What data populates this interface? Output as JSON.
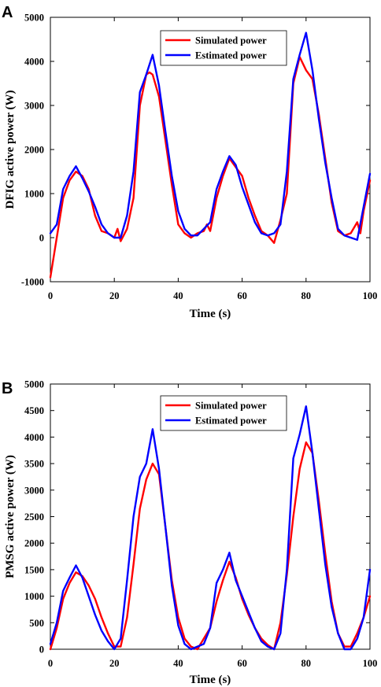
{
  "colors": {
    "simulated": "#ff0000",
    "estimated": "#0000ff"
  },
  "chart_data": [
    {
      "panel_label": "A",
      "type": "line",
      "title": "",
      "xlabel": "Time (s)",
      "ylabel": "DFIG active power (W)",
      "xlim": [
        0,
        100
      ],
      "ylim": [
        -1000,
        5000
      ],
      "xticks": [
        0,
        20,
        40,
        60,
        80,
        100
      ],
      "yticks": [
        -1000,
        0,
        1000,
        2000,
        3000,
        4000,
        5000
      ],
      "xtick_labels": [
        "0",
        "20",
        "40",
        "60",
        "80",
        "100"
      ],
      "ytick_labels": [
        "-1000",
        "0",
        "1000",
        "2000",
        "3000",
        "4000",
        "5000"
      ],
      "grid": false,
      "legend_position": "top-right",
      "series": [
        {
          "name": "Simulated power",
          "color": "#ff0000",
          "points": [
            [
              0,
              -900
            ],
            [
              2,
              0
            ],
            [
              4,
              900
            ],
            [
              6,
              1300
            ],
            [
              8,
              1500
            ],
            [
              10,
              1400
            ],
            [
              12,
              1100
            ],
            [
              14,
              500
            ],
            [
              16,
              150
            ],
            [
              18,
              100
            ],
            [
              20,
              0
            ],
            [
              21,
              200
            ],
            [
              22,
              -80
            ],
            [
              24,
              200
            ],
            [
              26,
              900
            ],
            [
              28,
              3000
            ],
            [
              30,
              3700
            ],
            [
              31,
              3750
            ],
            [
              32,
              3700
            ],
            [
              34,
              3200
            ],
            [
              36,
              2200
            ],
            [
              38,
              1200
            ],
            [
              40,
              300
            ],
            [
              42,
              100
            ],
            [
              44,
              0
            ],
            [
              46,
              100
            ],
            [
              48,
              150
            ],
            [
              49,
              300
            ],
            [
              50,
              150
            ],
            [
              52,
              900
            ],
            [
              54,
              1400
            ],
            [
              56,
              1800
            ],
            [
              58,
              1600
            ],
            [
              60,
              1400
            ],
            [
              62,
              900
            ],
            [
              64,
              500
            ],
            [
              66,
              150
            ],
            [
              68,
              50
            ],
            [
              70,
              -120
            ],
            [
              72,
              400
            ],
            [
              74,
              1000
            ],
            [
              76,
              3500
            ],
            [
              78,
              4100
            ],
            [
              80,
              3800
            ],
            [
              82,
              3600
            ],
            [
              84,
              2800
            ],
            [
              86,
              1800
            ],
            [
              88,
              800
            ],
            [
              90,
              150
            ],
            [
              92,
              50
            ],
            [
              94,
              100
            ],
            [
              96,
              350
            ],
            [
              97,
              100
            ],
            [
              98,
              600
            ],
            [
              100,
              1300
            ]
          ]
        },
        {
          "name": "Estimated power",
          "color": "#0000ff",
          "points": [
            [
              0,
              100
            ],
            [
              2,
              300
            ],
            [
              4,
              1100
            ],
            [
              6,
              1400
            ],
            [
              8,
              1620
            ],
            [
              10,
              1350
            ],
            [
              12,
              1050
            ],
            [
              14,
              700
            ],
            [
              16,
              300
            ],
            [
              18,
              100
            ],
            [
              20,
              0
            ],
            [
              22,
              0
            ],
            [
              24,
              500
            ],
            [
              26,
              1500
            ],
            [
              28,
              3300
            ],
            [
              30,
              3700
            ],
            [
              32,
              4150
            ],
            [
              34,
              3450
            ],
            [
              36,
              2400
            ],
            [
              38,
              1400
            ],
            [
              40,
              600
            ],
            [
              42,
              200
            ],
            [
              44,
              50
            ],
            [
              46,
              50
            ],
            [
              48,
              200
            ],
            [
              50,
              350
            ],
            [
              52,
              1100
            ],
            [
              54,
              1500
            ],
            [
              56,
              1850
            ],
            [
              58,
              1650
            ],
            [
              60,
              1150
            ],
            [
              62,
              750
            ],
            [
              64,
              350
            ],
            [
              66,
              100
            ],
            [
              68,
              50
            ],
            [
              70,
              100
            ],
            [
              72,
              300
            ],
            [
              74,
              1500
            ],
            [
              76,
              3600
            ],
            [
              78,
              4150
            ],
            [
              80,
              4650
            ],
            [
              82,
              3800
            ],
            [
              84,
              2700
            ],
            [
              86,
              1700
            ],
            [
              88,
              900
            ],
            [
              90,
              200
            ],
            [
              92,
              50
            ],
            [
              94,
              0
            ],
            [
              96,
              -50
            ],
            [
              98,
              700
            ],
            [
              100,
              1450
            ]
          ]
        }
      ]
    },
    {
      "panel_label": "B",
      "type": "line",
      "title": "",
      "xlabel": "Time (s)",
      "ylabel": "PMSG active power (W)",
      "xlim": [
        0,
        100
      ],
      "ylim": [
        0,
        5000
      ],
      "xticks": [
        0,
        20,
        40,
        60,
        80,
        100
      ],
      "yticks": [
        0,
        500,
        1000,
        1500,
        2000,
        2500,
        3000,
        3500,
        4000,
        4500,
        5000
      ],
      "xtick_labels": [
        "0",
        "20",
        "40",
        "60",
        "80",
        "100"
      ],
      "ytick_labels": [
        "0",
        "500",
        "1000",
        "1500",
        "2000",
        "2500",
        "3000",
        "3500",
        "4000",
        "4500",
        "5000"
      ],
      "grid": false,
      "legend_position": "top-right",
      "series": [
        {
          "name": "Simulated power",
          "color": "#ff0000",
          "points": [
            [
              0,
              0
            ],
            [
              2,
              400
            ],
            [
              4,
              950
            ],
            [
              6,
              1250
            ],
            [
              8,
              1450
            ],
            [
              10,
              1380
            ],
            [
              12,
              1200
            ],
            [
              14,
              950
            ],
            [
              16,
              600
            ],
            [
              18,
              300
            ],
            [
              20,
              50
            ],
            [
              22,
              50
            ],
            [
              24,
              600
            ],
            [
              26,
              1600
            ],
            [
              28,
              2650
            ],
            [
              30,
              3200
            ],
            [
              32,
              3500
            ],
            [
              34,
              3300
            ],
            [
              36,
              2300
            ],
            [
              38,
              1300
            ],
            [
              40,
              600
            ],
            [
              42,
              200
            ],
            [
              44,
              50
            ],
            [
              46,
              0
            ],
            [
              48,
              200
            ],
            [
              50,
              400
            ],
            [
              52,
              900
            ],
            [
              54,
              1300
            ],
            [
              56,
              1650
            ],
            [
              58,
              1350
            ],
            [
              60,
              950
            ],
            [
              62,
              650
            ],
            [
              64,
              400
            ],
            [
              66,
              200
            ],
            [
              68,
              80
            ],
            [
              70,
              0
            ],
            [
              72,
              500
            ],
            [
              74,
              1400
            ],
            [
              76,
              2500
            ],
            [
              78,
              3400
            ],
            [
              80,
              3900
            ],
            [
              82,
              3700
            ],
            [
              84,
              2800
            ],
            [
              86,
              1800
            ],
            [
              88,
              900
            ],
            [
              90,
              300
            ],
            [
              92,
              50
            ],
            [
              94,
              50
            ],
            [
              96,
              300
            ],
            [
              98,
              600
            ],
            [
              100,
              1000
            ]
          ]
        },
        {
          "name": "Estimated power",
          "color": "#0000ff",
          "points": [
            [
              0,
              100
            ],
            [
              2,
              500
            ],
            [
              4,
              1100
            ],
            [
              6,
              1350
            ],
            [
              8,
              1580
            ],
            [
              10,
              1350
            ],
            [
              12,
              1000
            ],
            [
              14,
              650
            ],
            [
              16,
              350
            ],
            [
              18,
              150
            ],
            [
              20,
              0
            ],
            [
              22,
              200
            ],
            [
              24,
              1300
            ],
            [
              26,
              2500
            ],
            [
              28,
              3250
            ],
            [
              30,
              3500
            ],
            [
              32,
              4150
            ],
            [
              34,
              3400
            ],
            [
              36,
              2300
            ],
            [
              38,
              1200
            ],
            [
              40,
              450
            ],
            [
              42,
              100
            ],
            [
              44,
              0
            ],
            [
              46,
              50
            ],
            [
              48,
              100
            ],
            [
              50,
              400
            ],
            [
              52,
              1250
            ],
            [
              54,
              1500
            ],
            [
              56,
              1820
            ],
            [
              58,
              1300
            ],
            [
              60,
              1000
            ],
            [
              62,
              700
            ],
            [
              64,
              400
            ],
            [
              66,
              150
            ],
            [
              68,
              50
            ],
            [
              70,
              0
            ],
            [
              72,
              300
            ],
            [
              74,
              1500
            ],
            [
              76,
              3600
            ],
            [
              78,
              4050
            ],
            [
              80,
              4580
            ],
            [
              82,
              3700
            ],
            [
              84,
              2650
            ],
            [
              86,
              1600
            ],
            [
              88,
              800
            ],
            [
              90,
              300
            ],
            [
              92,
              0
            ],
            [
              94,
              0
            ],
            [
              96,
              200
            ],
            [
              98,
              600
            ],
            [
              100,
              1500
            ]
          ]
        }
      ]
    }
  ]
}
